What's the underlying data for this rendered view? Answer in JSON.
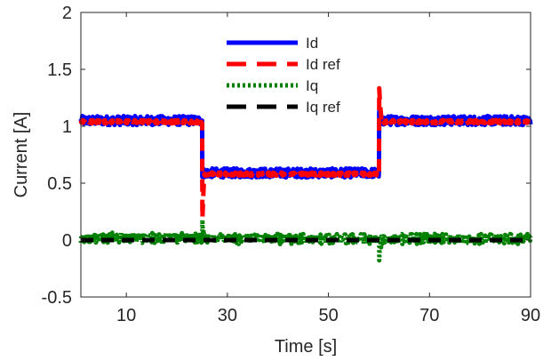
{
  "chart_data": {
    "type": "line",
    "xlabel": "Time [s]",
    "ylabel": "Current [A]",
    "xlim": [
      1,
      90
    ],
    "ylim": [
      -0.5,
      2
    ],
    "xticks": [
      10,
      30,
      50,
      70,
      90
    ],
    "xtick_labels": [
      "10",
      "30",
      "50",
      "70",
      "90"
    ],
    "yticks": [
      -0.5,
      0,
      0.5,
      1,
      1.5,
      2
    ],
    "ytick_labels": [
      "-0.5",
      "0",
      "0.5",
      "1",
      "1.5",
      "2"
    ],
    "grid": false,
    "legend_position": "top-center",
    "series": [
      {
        "name": "Id",
        "color": "#0000ff",
        "style": "solid",
        "x": [
          1,
          25,
          25,
          25.4,
          60,
          60,
          60.3,
          90
        ],
        "y": [
          1.05,
          1.05,
          0.59,
          0.59,
          0.59,
          1.16,
          1.05,
          1.05
        ],
        "noise": 0.04
      },
      {
        "name": "Id ref",
        "color": "#ff0000",
        "style": "dashed",
        "x": [
          1,
          25,
          25.05,
          25.4,
          60,
          60.05,
          60.5,
          90
        ],
        "y": [
          1.04,
          1.04,
          0.18,
          0.58,
          0.58,
          1.32,
          1.04,
          1.04
        ],
        "noise": 0.015
      },
      {
        "name": "Iq",
        "color": "#008000",
        "style": "dotted",
        "x": [
          1,
          25,
          25.05,
          25.5,
          60,
          60.05,
          60.5,
          90
        ],
        "y": [
          0.02,
          0.02,
          0.15,
          0.01,
          0.01,
          -0.14,
          0.01,
          0.01
        ],
        "noise": 0.045
      },
      {
        "name": "Iq ref",
        "color": "#000000",
        "style": "dashed",
        "x": [
          1,
          90
        ],
        "y": [
          0,
          0
        ],
        "noise": 0
      }
    ]
  }
}
